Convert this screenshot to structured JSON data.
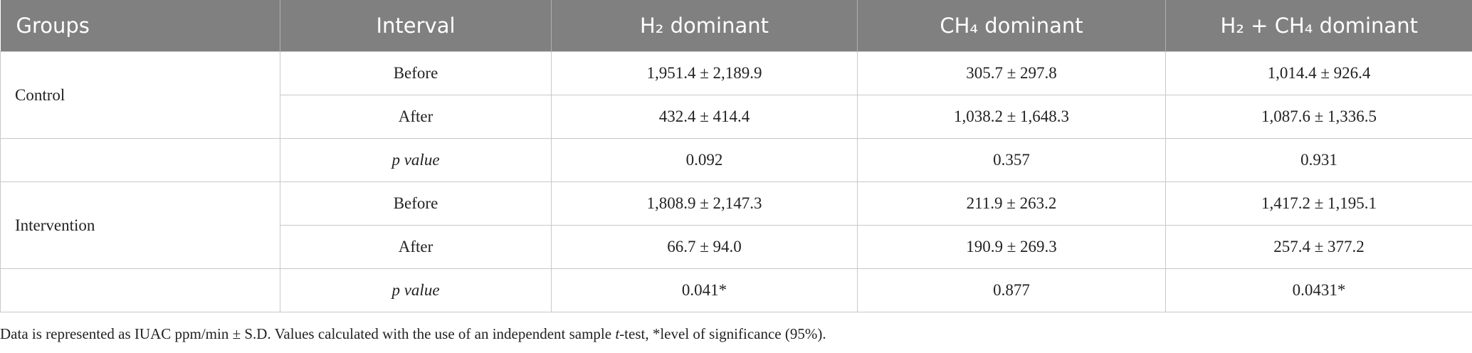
{
  "table": {
    "header": [
      "Groups",
      "Interval",
      "H₂ dominant",
      "CH₄ dominant",
      "H₂ + CH₄ dominant"
    ],
    "groups": [
      "Control",
      "Intervention"
    ],
    "rows": [
      [
        "Before",
        "1,951.4 ± 2,189.9",
        "305.7 ± 297.8",
        "1,014.4 ± 926.4"
      ],
      [
        "After",
        "432.4 ± 414.4",
        "1,038.2 ± 1,648.3",
        "1,087.6 ± 1,336.5"
      ],
      [
        [
          "p",
          " value"
        ],
        "0.092",
        "0.357",
        "0.931"
      ],
      [
        "Before",
        "1,808.9 ± 2,147.3",
        "211.9 ± 263.2",
        "1,417.2 ± 1,195.1"
      ],
      [
        "After",
        "66.7 ± 94.0",
        "190.9 ± 269.3",
        "257.4 ± 377.2"
      ],
      [
        [
          "p",
          " value"
        ],
        "0.041*",
        "0.877",
        "0.0431*"
      ]
    ]
  },
  "footnote": [
    "Data is represented as IUAC ppm/min ± S.D. Values calculated with the use of an independent sample ",
    "t",
    "-test, *level of significance (95%)."
  ]
}
